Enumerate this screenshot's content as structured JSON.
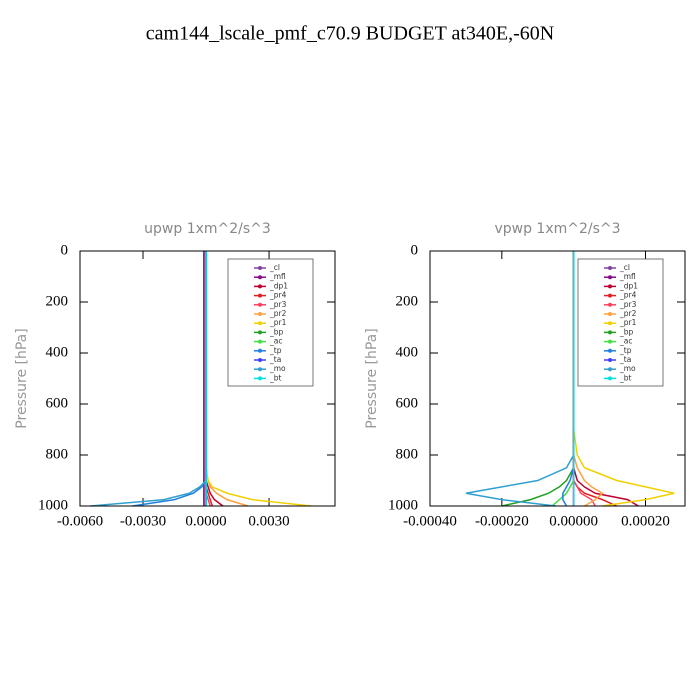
{
  "title": "cam144_lscale_pmf_c70.9  BUDGET at340E,-60N",
  "chart_data": [
    {
      "type": "line",
      "title": "upwp   1xm^2/s^3",
      "y_label": "Pressure [hPa]",
      "legend": "upper right",
      "xlim": [
        -0.006,
        0.00614
      ],
      "xticks": [
        {
          "value": -0.006,
          "label": "-0.0060"
        },
        {
          "value": -0.003,
          "label": "-0.0030"
        },
        {
          "value": 0,
          "label": "0.0000"
        },
        {
          "value": 0.003,
          "label": "0.0030"
        }
      ],
      "ylim": [
        1000,
        0
      ],
      "yticks": [
        0,
        200,
        400,
        600,
        800,
        1000
      ],
      "y": [
        0,
        100,
        200,
        300,
        400,
        500,
        600,
        700,
        800,
        850,
        900,
        925,
        950,
        975,
        1000
      ],
      "series": [
        {
          "name": "_cl",
          "color": "#8040a0",
          "values": [
            -0.0001,
            -0.0001,
            -0.0001,
            -0.0001,
            -0.0001,
            -0.0001,
            -0.0001,
            -0.0001,
            -0.0001,
            -0.0001,
            -0.0001,
            -0.0001,
            -0.0001,
            -0.0001,
            -0.0001
          ]
        },
        {
          "name": "_mfl",
          "color": "#8a0a8a",
          "values": [
            -0.0001,
            -0.0001,
            -0.0001,
            -0.0001,
            -0.0001,
            -0.0001,
            -0.0001,
            -0.0001,
            -0.0001,
            -0.0001,
            -0.0001,
            -0.0001,
            -0.0001,
            -0.0001,
            -0.0001
          ]
        },
        {
          "name": "_dp1",
          "color": "#c00030",
          "values": [
            0,
            0,
            0,
            0,
            0,
            0,
            0,
            0,
            0,
            0,
            0,
            0.0001,
            0.0002,
            0.0004,
            0.0008
          ]
        },
        {
          "name": "_pr4",
          "color": "#e02020",
          "values": [
            0,
            0,
            0,
            0,
            0,
            0,
            0,
            0,
            0,
            0,
            0,
            0,
            0.0001,
            0.0002,
            0.0003
          ]
        },
        {
          "name": "_pr3",
          "color": "#ff4060",
          "values": [
            0,
            0,
            0,
            0,
            0,
            0,
            0,
            0,
            0,
            0,
            0,
            0,
            0,
            0.0001,
            0.0002
          ]
        },
        {
          "name": "_pr2",
          "color": "#ffa040",
          "values": [
            0,
            0,
            0,
            0,
            0,
            0,
            0,
            0,
            0,
            0,
            0.0001,
            0.0002,
            0.0005,
            0.001,
            0.002
          ]
        },
        {
          "name": "_pr1",
          "color": "#f0d000",
          "values": [
            0,
            0,
            0,
            0,
            0,
            0,
            0,
            0,
            0,
            0,
            0.0001,
            0.0003,
            0.001,
            0.0022,
            0.005
          ]
        },
        {
          "name": "_bp",
          "color": "#20a020",
          "values": [
            0,
            0,
            0,
            0,
            0,
            0,
            0,
            0,
            0,
            0,
            0,
            0,
            0,
            0,
            0
          ]
        },
        {
          "name": "_ac",
          "color": "#40e040",
          "values": [
            0,
            0,
            0,
            0,
            0,
            0,
            0,
            0,
            0,
            0,
            0,
            0,
            0,
            0,
            0
          ]
        },
        {
          "name": "_tp",
          "color": "#2080e0",
          "values": [
            0,
            0,
            0,
            0,
            0,
            0,
            0,
            0,
            0,
            0,
            0,
            -0.0002,
            -0.0006,
            -0.0015,
            -0.0035
          ]
        },
        {
          "name": "_ta",
          "color": "#4040ff",
          "values": [
            0,
            0,
            0,
            0,
            0,
            0,
            0,
            0,
            0,
            0,
            0,
            0,
            0,
            0,
            0
          ]
        },
        {
          "name": "_mo",
          "color": "#30a0d0",
          "values": [
            0,
            0,
            0,
            0,
            0,
            0,
            0,
            0,
            0,
            0,
            0,
            -0.0003,
            -0.0008,
            -0.002,
            -0.0055
          ]
        },
        {
          "name": "_bt",
          "color": "#00e0e0",
          "values": [
            0,
            0,
            0,
            0,
            0,
            0,
            0,
            0,
            0,
            0,
            0,
            0,
            0,
            0,
            0
          ]
        }
      ]
    },
    {
      "type": "line",
      "title": "vpwp   1xm^2/s^3",
      "y_label": "Pressure [hPa]",
      "legend": "upper right",
      "xlim": [
        -0.0004,
        0.00031
      ],
      "xticks": [
        {
          "value": -0.0004,
          "label": "-0.00040"
        },
        {
          "value": -0.0002,
          "label": "-0.00020"
        },
        {
          "value": 0,
          "label": "0.00000"
        },
        {
          "value": 0.0002,
          "label": "0.00020"
        }
      ],
      "ylim": [
        1000,
        0
      ],
      "yticks": [
        0,
        200,
        400,
        600,
        800,
        1000
      ],
      "y": [
        0,
        100,
        200,
        300,
        400,
        500,
        600,
        700,
        800,
        850,
        900,
        925,
        950,
        975,
        1000
      ],
      "series": [
        {
          "name": "_cl",
          "color": "#8040a0",
          "values": [
            0,
            0,
            0,
            0,
            0,
            0,
            0,
            0,
            0,
            0,
            0,
            0,
            0,
            0,
            0
          ]
        },
        {
          "name": "_mfl",
          "color": "#8a0a8a",
          "values": [
            0,
            0,
            0,
            0,
            0,
            0,
            0,
            0,
            0,
            0,
            0,
            0,
            0,
            0,
            0
          ]
        },
        {
          "name": "_dp1",
          "color": "#c00030",
          "values": [
            0,
            0,
            0,
            0,
            0,
            0,
            0,
            0,
            0,
            0,
            1e-05,
            3e-05,
            6e-05,
            0.00015,
            0.00018
          ]
        },
        {
          "name": "_pr4",
          "color": "#e02020",
          "values": [
            0,
            0,
            0,
            0,
            0,
            0,
            0,
            0,
            0,
            0,
            0,
            1e-05,
            3e-05,
            8e-05,
            0.00012
          ]
        },
        {
          "name": "_pr3",
          "color": "#ff4060",
          "values": [
            0,
            0,
            0,
            0,
            0,
            0,
            0,
            0,
            0,
            0,
            0,
            1e-05,
            2e-05,
            5e-05,
            6e-05
          ]
        },
        {
          "name": "_pr2",
          "color": "#ffa040",
          "values": [
            0,
            0,
            0,
            0,
            0,
            0,
            0,
            0,
            0,
            1e-05,
            3e-05,
            5e-05,
            8e-05,
            6e-05,
            3e-05
          ]
        },
        {
          "name": "_pr1",
          "color": "#f0d000",
          "values": [
            0,
            0,
            0,
            0,
            0,
            0,
            0,
            0,
            1e-05,
            3e-05,
            0.00012,
            0.0002,
            0.00028,
            0.0002,
            8e-05
          ]
        },
        {
          "name": "_bp",
          "color": "#20a020",
          "values": [
            0,
            0,
            0,
            0,
            0,
            0,
            0,
            0,
            0,
            0,
            -2e-05,
            -4e-05,
            -7e-05,
            -0.00012,
            -0.0002
          ]
        },
        {
          "name": "_ac",
          "color": "#40e040",
          "values": [
            0,
            0,
            0,
            0,
            0,
            0,
            0,
            0,
            0,
            0,
            0,
            -1e-05,
            -2e-05,
            -4e-05,
            -6e-05
          ]
        },
        {
          "name": "_tp",
          "color": "#2080e0",
          "values": [
            0,
            0,
            0,
            0,
            0,
            0,
            0,
            0,
            0,
            0,
            -1e-05,
            -2e-05,
            -3e-05,
            -3e-05,
            -2e-05
          ]
        },
        {
          "name": "_ta",
          "color": "#4040ff",
          "values": [
            0,
            0,
            0,
            0,
            0,
            0,
            0,
            0,
            0,
            0,
            0,
            0,
            0,
            0,
            0
          ]
        },
        {
          "name": "_mo",
          "color": "#30a0d0",
          "values": [
            0,
            0,
            0,
            0,
            0,
            0,
            0,
            0,
            0,
            -2e-05,
            -0.0001,
            -0.0002,
            -0.0003,
            -0.0002,
            -5e-05
          ]
        },
        {
          "name": "_bt",
          "color": "#00e0e0",
          "values": [
            0,
            0,
            0,
            0,
            0,
            0,
            0,
            0,
            0,
            0,
            0,
            0,
            0,
            0,
            0
          ]
        }
      ]
    }
  ]
}
